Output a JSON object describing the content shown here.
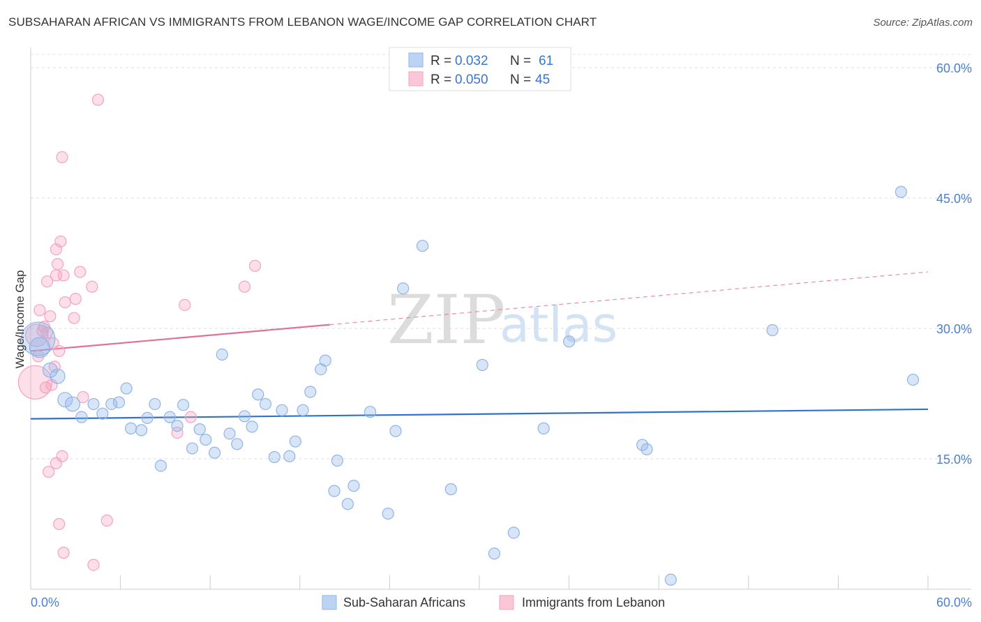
{
  "title": "SUBSAHARAN AFRICAN VS IMMIGRANTS FROM LEBANON WAGE/INCOME GAP CORRELATION CHART",
  "source": "Source: ZipAtlas.com",
  "watermark": {
    "part1": "ZIP",
    "part2": "atlas"
  },
  "chart_data": {
    "type": "scatter",
    "title": "SUBSAHARAN AFRICAN VS IMMIGRANTS FROM LEBANON WAGE/INCOME GAP CORRELATION CHART",
    "xlabel": "",
    "ylabel": "Wage/Income Gap",
    "xlim": [
      0,
      60
    ],
    "ylim": [
      0,
      60
    ],
    "x_tick_labels": {
      "min": "0.0%",
      "max": "60.0%"
    },
    "y_ticks": [
      {
        "value": 15,
        "label": "15.0%"
      },
      {
        "value": 30,
        "label": "30.0%"
      },
      {
        "value": 45,
        "label": "45.0%"
      },
      {
        "value": 60,
        "label": "60.0%"
      }
    ],
    "grid": true,
    "legend_position": "top-center",
    "legend": [
      {
        "r_label": "R =",
        "r_value": "0.032",
        "n_label": "N =",
        "n_value": "61"
      },
      {
        "r_label": "R =",
        "r_value": "0.050",
        "n_label": "N =",
        "n_value": "45"
      }
    ],
    "series": [
      {
        "name": "Sub-Saharan Africans",
        "color": "#8fb4e8",
        "line_color": "#2f72c9",
        "trend": {
          "x": [
            0,
            60
          ],
          "y": [
            19.6,
            20.7
          ],
          "dashed_from": null
        },
        "points": [
          [
            0.5,
            28.8,
            3
          ],
          [
            0.6,
            27.8,
            1.8
          ],
          [
            1.3,
            25.2,
            1.3
          ],
          [
            1.8,
            24.5,
            1.3
          ],
          [
            2.3,
            21.8,
            1.3
          ],
          [
            2.8,
            21.3,
            1.3
          ],
          [
            3.4,
            19.8,
            1
          ],
          [
            4.2,
            21.3,
            1
          ],
          [
            4.8,
            20.2,
            1
          ],
          [
            5.4,
            21.3,
            1
          ],
          [
            5.9,
            21.5,
            1
          ],
          [
            6.4,
            23.1,
            1
          ],
          [
            6.7,
            18.5,
            1
          ],
          [
            7.4,
            18.3,
            1
          ],
          [
            7.8,
            19.7,
            1
          ],
          [
            8.3,
            21.3,
            1
          ],
          [
            8.7,
            14.2,
            1
          ],
          [
            9.3,
            19.8,
            1
          ],
          [
            9.8,
            18.8,
            1
          ],
          [
            10.2,
            21.2,
            1
          ],
          [
            10.8,
            16.2,
            1
          ],
          [
            11.3,
            18.4,
            1
          ],
          [
            11.7,
            17.2,
            1
          ],
          [
            12.3,
            15.7,
            1
          ],
          [
            12.8,
            27.0,
            1
          ],
          [
            13.3,
            17.9,
            1
          ],
          [
            13.8,
            16.7,
            1
          ],
          [
            14.3,
            19.9,
            1
          ],
          [
            14.8,
            18.7,
            1
          ],
          [
            15.2,
            22.4,
            1
          ],
          [
            15.7,
            21.3,
            1
          ],
          [
            16.3,
            15.2,
            1
          ],
          [
            16.8,
            20.6,
            1
          ],
          [
            17.3,
            15.3,
            1
          ],
          [
            17.7,
            17.0,
            1
          ],
          [
            18.2,
            20.6,
            1
          ],
          [
            18.7,
            22.7,
            1
          ],
          [
            19.4,
            25.3,
            1
          ],
          [
            19.7,
            26.3,
            1
          ],
          [
            20.3,
            11.3,
            1
          ],
          [
            20.5,
            14.8,
            1
          ],
          [
            21.2,
            9.8,
            1
          ],
          [
            21.6,
            11.9,
            1
          ],
          [
            22.7,
            20.4,
            1
          ],
          [
            23.9,
            8.7,
            1
          ],
          [
            24.4,
            18.2,
            1
          ],
          [
            24.9,
            34.6,
            1
          ],
          [
            26.2,
            39.5,
            1
          ],
          [
            28.1,
            11.5,
            1
          ],
          [
            30.2,
            25.8,
            1
          ],
          [
            31.0,
            4.1,
            1
          ],
          [
            32.3,
            6.5,
            1
          ],
          [
            34.3,
            18.5,
            1
          ],
          [
            36.0,
            28.5,
            1
          ],
          [
            40.9,
            16.6,
            1
          ],
          [
            41.2,
            16.1,
            1
          ],
          [
            42.8,
            1.1,
            1
          ],
          [
            49.6,
            29.8,
            1
          ],
          [
            58.2,
            45.7,
            1
          ],
          [
            59.0,
            24.1,
            1
          ]
        ]
      },
      {
        "name": "Immigrants from Lebanon",
        "color": "#f5a3bd",
        "line_color": "#e0709a",
        "trend": {
          "x": [
            0,
            60
          ],
          "y": [
            27.4,
            36.5
          ],
          "solid_until_x": 20
        },
        "points": [
          [
            0.3,
            23.8,
            3
          ],
          [
            0.4,
            29.2,
            2
          ],
          [
            0.5,
            26.8,
            1
          ],
          [
            0.6,
            32.1,
            1
          ],
          [
            0.8,
            29.7,
            1
          ],
          [
            0.9,
            30.2,
            1
          ],
          [
            1.0,
            23.2,
            1
          ],
          [
            1.1,
            35.4,
            1
          ],
          [
            1.1,
            29.5,
            1
          ],
          [
            1.2,
            13.5,
            1
          ],
          [
            1.3,
            31.4,
            1
          ],
          [
            1.4,
            23.5,
            1
          ],
          [
            1.5,
            28.3,
            1
          ],
          [
            1.6,
            25.6,
            1
          ],
          [
            1.7,
            39.1,
            1
          ],
          [
            1.7,
            14.5,
            1
          ],
          [
            1.7,
            36.1,
            1
          ],
          [
            1.8,
            37.4,
            1
          ],
          [
            1.9,
            27.4,
            1
          ],
          [
            1.9,
            7.5,
            1
          ],
          [
            2.0,
            40.0,
            1
          ],
          [
            2.1,
            15.3,
            1
          ],
          [
            2.1,
            49.7,
            1
          ],
          [
            2.2,
            4.2,
            1
          ],
          [
            2.2,
            36.1,
            1
          ],
          [
            2.3,
            33.0,
            1
          ],
          [
            2.9,
            31.2,
            1
          ],
          [
            3.0,
            33.4,
            1
          ],
          [
            3.3,
            36.5,
            1
          ],
          [
            3.5,
            22.1,
            1
          ],
          [
            4.1,
            34.8,
            1
          ],
          [
            4.2,
            2.8,
            1
          ],
          [
            4.5,
            56.3,
            1
          ],
          [
            5.1,
            7.9,
            1
          ],
          [
            10.3,
            32.7,
            1
          ],
          [
            10.7,
            19.8,
            1
          ],
          [
            9.8,
            18.0,
            1
          ],
          [
            14.3,
            34.8,
            1
          ],
          [
            15.0,
            37.2,
            1
          ]
        ]
      }
    ]
  },
  "bottom_legend": [
    {
      "label": "Sub-Saharan Africans"
    },
    {
      "label": "Immigrants from Lebanon"
    }
  ]
}
